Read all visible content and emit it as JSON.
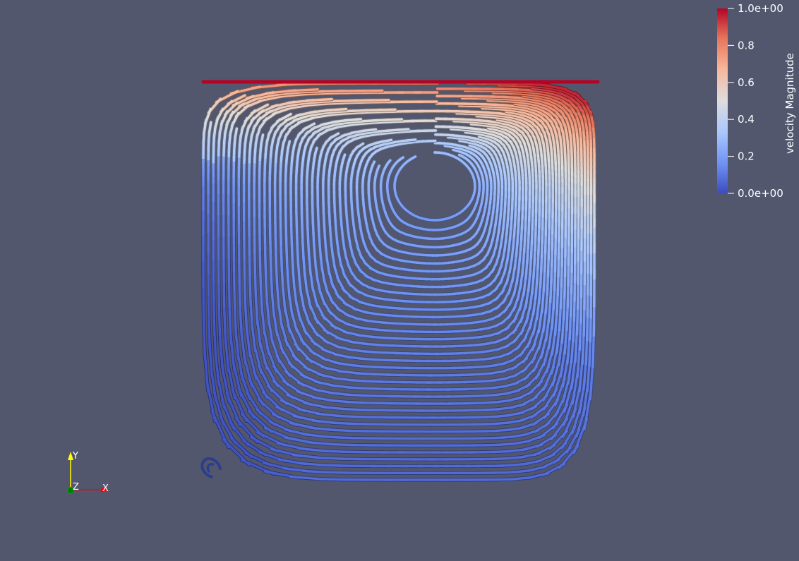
{
  "colorbar": {
    "title": "velocity Magnitude",
    "range": [
      0.0,
      1.0
    ],
    "ticks": [
      {
        "value": 1.0,
        "label": "1.0e+00"
      },
      {
        "value": 0.8,
        "label": "0.8"
      },
      {
        "value": 0.6,
        "label": "0.6"
      },
      {
        "value": 0.4,
        "label": "0.4"
      },
      {
        "value": 0.2,
        "label": "0.2"
      },
      {
        "value": 0.0,
        "label": "0.0e+00"
      }
    ],
    "colormap": [
      "#3b4cc0",
      "#6f92f3",
      "#aac7fd",
      "#dddddd",
      "#f7b89c",
      "#e7745b",
      "#b40426"
    ]
  },
  "orientation_axes": {
    "y": {
      "label": "Y",
      "color": "#ffff00"
    },
    "x": {
      "label": "X",
      "color": "#ff0000"
    },
    "z": {
      "label": "Z",
      "color": "#00aa00"
    }
  },
  "background_color": "#52576e",
  "visualization": {
    "type": "streamlines",
    "colored_by": "velocity Magnitude"
  }
}
